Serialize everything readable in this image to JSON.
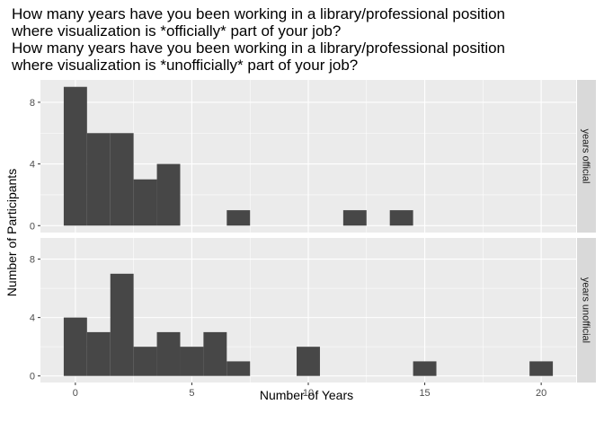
{
  "chart_data": {
    "type": "bar",
    "subtype": "faceted histogram",
    "title_lines": [
      "How many years have you been working in a library/professional position",
      "where visualization is *officially* part of your job?",
      "How many years have you been working in a library/professional position",
      "where visualization is *unofficially* part of your job?"
    ],
    "xlabel": "Number of Years",
    "ylabel": "Number of Participants",
    "xlim": [
      -1.5,
      21.5
    ],
    "ylim": [
      -0.45,
      9.45
    ],
    "x_ticks": [
      0,
      5,
      10,
      15,
      20
    ],
    "y_ticks": [
      0,
      4,
      8
    ],
    "bin_width": 1,
    "grid": true,
    "colors": {
      "panel_bg": "#ebebeb",
      "grid": "#ffffff",
      "bar": "#474747",
      "strip_bg": "#d9d9d9",
      "tick": "#333333"
    },
    "facets": [
      {
        "label": "years official",
        "x": [
          0,
          1,
          2,
          3,
          4,
          7,
          12,
          14
        ],
        "counts": [
          9,
          6,
          6,
          3,
          4,
          1,
          1,
          1
        ]
      },
      {
        "label": "years unofficial",
        "x": [
          0,
          1,
          2,
          3,
          4,
          5,
          6,
          7,
          10,
          15,
          20
        ],
        "counts": [
          4,
          3,
          7,
          2,
          3,
          2,
          3,
          1,
          2,
          1,
          1
        ]
      }
    ]
  }
}
